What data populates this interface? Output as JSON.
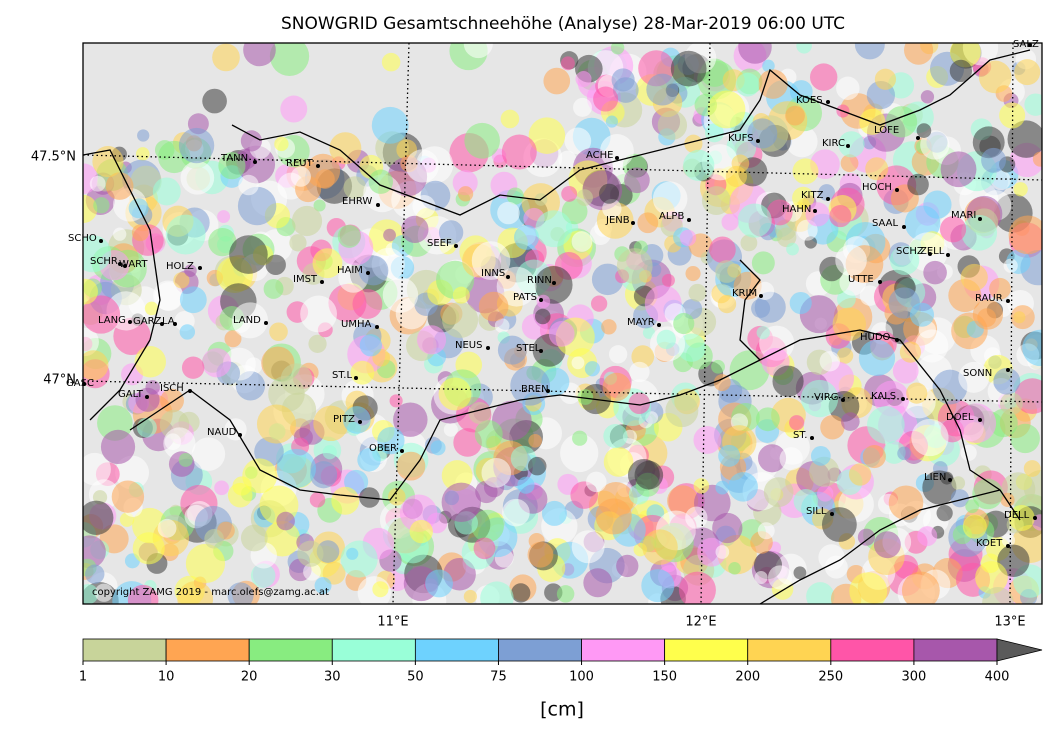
{
  "title": "SNOWGRID Gesamtschneehöhe (Analyse) 28-Mar-2019 06:00 UTC",
  "map": {
    "latitude_labels": [
      "47.5°N",
      "47°N"
    ],
    "longitude_labels": [
      "11°E",
      "12°E",
      "13°E"
    ],
    "copyright": "copyright ZAMG 2019 - marc.olefs@zamg.ac.at",
    "stations": [
      "SALZ",
      "KOES",
      "KUFS",
      "KIRC",
      "LOFE",
      "ACHE",
      "TANN",
      "REUT",
      "HOCH",
      "KITZ",
      "HAHN",
      "EHRW",
      "JENB",
      "ALPB",
      "SAAL",
      "MARI",
      "SCHO",
      "SEEF",
      "SCHZ",
      "ZELL",
      "SCHR",
      "WART",
      "HOLZ",
      "HAIM",
      "INNS",
      "RINN",
      "IMST",
      "UTTE",
      "KRIM",
      "PATS",
      "RAUR",
      "LANG",
      "GARZ",
      "LA",
      "LAND",
      "UMHA",
      "MAYR",
      "NEUS",
      "STEL",
      "HUDO",
      "SONN",
      "ST.L",
      "GASC",
      "ISCH",
      "BREN",
      "GALT",
      "VIRG",
      "KALS",
      "DOEL",
      "PITZ",
      "NAUD",
      "ST.",
      "OBER",
      "LIEN",
      "SILL",
      "DELL",
      "KOET"
    ]
  },
  "colorbar": {
    "bounds": [
      1,
      10,
      20,
      30,
      50,
      75,
      100,
      150,
      200,
      250,
      300,
      400
    ],
    "colors": [
      "#c8d49a",
      "#ffa552",
      "#88ec80",
      "#99ffd8",
      "#6ed2fe",
      "#7d9fd4",
      "#ff99f5",
      "#ffff4c",
      "#ffd452",
      "#ff55a8",
      "#a757ab"
    ],
    "extend_color": "#5a5a5a",
    "unit": "[cm]"
  }
}
